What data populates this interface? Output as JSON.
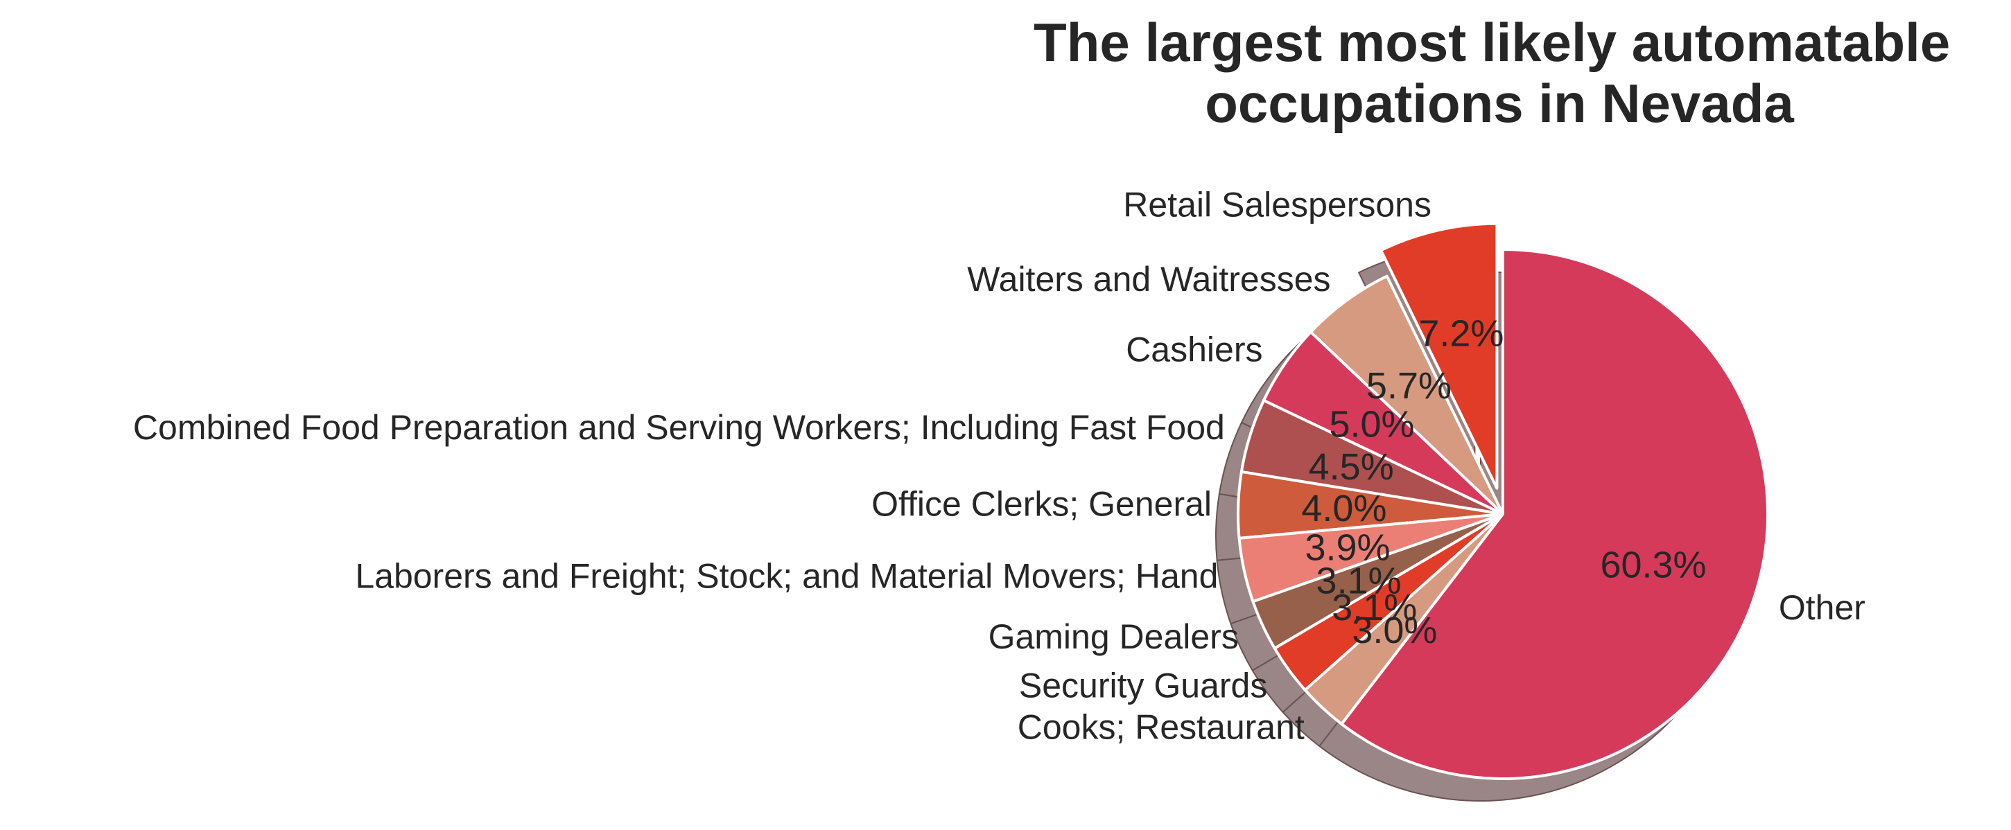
{
  "chart_data": {
    "type": "pie",
    "title": "The largest most likely automatable occupations in Nevada",
    "title_lines": [
      "The largest most likely automatable",
      "occupations in Nevada"
    ],
    "start_angle_deg": 90,
    "direction": "counterclockwise",
    "shadow": true,
    "slices": [
      {
        "label": "Retail Salespersons",
        "value": 7.2,
        "value_label": "7.2%",
        "color": "#e03c28",
        "explode": 0.1
      },
      {
        "label": "Waiters and Waitresses",
        "value": 5.7,
        "value_label": "5.7%",
        "color": "#d69a80",
        "explode": 0
      },
      {
        "label": "Cashiers",
        "value": 5.0,
        "value_label": "5.0%",
        "color": "#d63a5b",
        "explode": 0
      },
      {
        "label": "Combined Food Preparation and Serving Workers; Including Fast Food",
        "value": 4.5,
        "value_label": "4.5%",
        "color": "#ae5050",
        "explode": 0
      },
      {
        "label": "Office Clerks; General",
        "value": 4.0,
        "value_label": "4.0%",
        "color": "#cd5b3c",
        "explode": 0
      },
      {
        "label": "Laborers and Freight; Stock; and Material Movers; Hand",
        "value": 3.9,
        "value_label": "3.9%",
        "color": "#eb7f76",
        "explode": 0
      },
      {
        "label": "Gaming Dealers",
        "value": 3.1,
        "value_label": "3.1%",
        "color": "#96604a",
        "explode": 0
      },
      {
        "label": "Security Guards",
        "value": 3.1,
        "value_label": "3.1%",
        "color": "#e03c28",
        "explode": 0
      },
      {
        "label": "Cooks; Restaurant",
        "value": 3.0,
        "value_label": "3.0%",
        "color": "#d69a80",
        "explode": 0
      },
      {
        "label": "Other",
        "value": 60.3,
        "value_label": "60.3%",
        "color": "#d63a5b",
        "explode": 0
      }
    ]
  }
}
